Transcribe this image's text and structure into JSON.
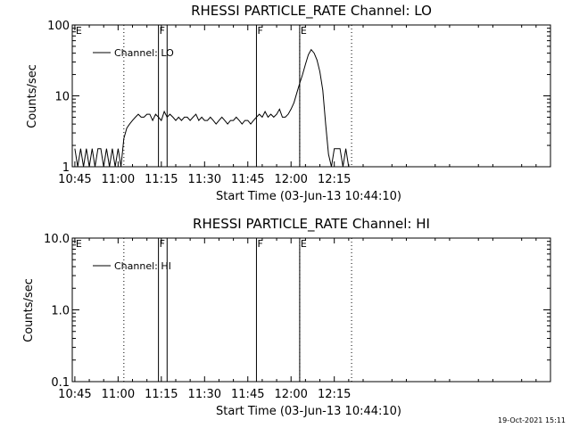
{
  "chart_data": [
    {
      "type": "line",
      "title": "RHESSI PARTICLE_RATE Channel: LO",
      "xlabel": "Start Time (03-Jun-13 10:44:10)",
      "ylabel": "Counts/sec",
      "y_scale": "log",
      "ylim": [
        1,
        100
      ],
      "xlim_minutes": [
        44.1,
        210
      ],
      "x_tick_labels": [
        "10:45",
        "11:00",
        "11:15",
        "11:30",
        "11:45",
        "12:00",
        "12:15"
      ],
      "y_tick_labels": [
        "1",
        "10",
        "100"
      ],
      "legend": "Channel: LO",
      "legend_position": "top-left",
      "flags": [
        {
          "label": "E",
          "time": "10:45",
          "style": "none"
        },
        {
          "label": "",
          "time": "11:02",
          "style": "dotted"
        },
        {
          "label": "F",
          "time": "11:14",
          "style": "solid"
        },
        {
          "label": "",
          "time": "11:17",
          "style": "solid"
        },
        {
          "label": "F",
          "time": "11:48",
          "style": "solid"
        },
        {
          "label": "E",
          "time": "12:03",
          "style": "solid"
        },
        {
          "label": "",
          "time": "12:03",
          "style": "dotted"
        },
        {
          "label": "",
          "time": "12:21",
          "style": "dotted"
        }
      ],
      "series": [
        {
          "name": "Channel: LO",
          "x": [
            "10:45",
            "10:46",
            "10:47",
            "10:48",
            "10:49",
            "10:50",
            "10:51",
            "10:52",
            "10:53",
            "10:54",
            "10:55",
            "10:56",
            "10:57",
            "10:58",
            "10:59",
            "11:00",
            "11:01",
            "11:02",
            "11:03",
            "11:04",
            "11:05",
            "11:06",
            "11:07",
            "11:08",
            "11:09",
            "11:10",
            "11:11",
            "11:12",
            "11:13",
            "11:14",
            "11:15",
            "11:16",
            "11:17",
            "11:18",
            "11:19",
            "11:20",
            "11:21",
            "11:22",
            "11:23",
            "11:24",
            "11:25",
            "11:26",
            "11:27",
            "11:28",
            "11:29",
            "11:30",
            "11:31",
            "11:32",
            "11:33",
            "11:34",
            "11:35",
            "11:36",
            "11:37",
            "11:38",
            "11:39",
            "11:40",
            "11:41",
            "11:42",
            "11:43",
            "11:44",
            "11:45",
            "11:46",
            "11:47",
            "11:48",
            "11:49",
            "11:50",
            "11:51",
            "11:52",
            "11:53",
            "11:54",
            "11:55",
            "11:56",
            "11:57",
            "11:58",
            "11:59",
            "12:00",
            "12:01",
            "12:02",
            "12:03",
            "12:04",
            "12:05",
            "12:06",
            "12:07",
            "12:08",
            "12:09",
            "12:10",
            "12:11",
            "12:12",
            "12:13",
            "12:14",
            "12:15",
            "12:16",
            "12:17",
            "12:18",
            "12:19",
            "12:20"
          ],
          "y": [
            1.8,
            1.0,
            1.8,
            1.0,
            1.8,
            1.0,
            1.8,
            1.0,
            1.8,
            1.8,
            1.0,
            1.8,
            1.0,
            1.8,
            1.0,
            1.8,
            1.0,
            2.5,
            3.5,
            4.0,
            4.5,
            5.0,
            5.5,
            5.0,
            5.0,
            5.5,
            5.5,
            4.5,
            5.5,
            5.0,
            4.5,
            6.0,
            5.0,
            5.5,
            5.0,
            4.5,
            5.0,
            4.5,
            5.0,
            5.0,
            4.5,
            5.0,
            5.5,
            4.5,
            5.0,
            4.5,
            4.5,
            5.0,
            4.5,
            4.0,
            4.5,
            5.0,
            4.5,
            4.0,
            4.5,
            4.5,
            5.0,
            4.5,
            4.0,
            4.5,
            4.5,
            4.0,
            4.5,
            5.0,
            5.5,
            5.0,
            6.0,
            5.0,
            5.5,
            5.0,
            5.5,
            6.5,
            5.0,
            5.0,
            5.5,
            6.5,
            8.0,
            11.0,
            15.0,
            20.0,
            28.0,
            38.0,
            45.0,
            40.0,
            32.0,
            22.0,
            12.0,
            4.0,
            1.5,
            1.0,
            1.8,
            1.8,
            1.8,
            1.0,
            1.8,
            1.0
          ]
        }
      ]
    },
    {
      "type": "line",
      "title": "RHESSI PARTICLE_RATE Channel: HI",
      "xlabel": "Start Time (03-Jun-13 10:44:10)",
      "ylabel": "Counts/sec",
      "y_scale": "log",
      "ylim": [
        0.1,
        10
      ],
      "xlim_minutes": [
        44.1,
        210
      ],
      "x_tick_labels": [
        "10:45",
        "11:00",
        "11:15",
        "11:30",
        "11:45",
        "12:00",
        "12:15"
      ],
      "y_tick_labels": [
        "0.1",
        "1.0",
        "10.0"
      ],
      "legend": "Channel: HI",
      "legend_position": "top-left",
      "flags": [
        {
          "label": "E",
          "time": "10:45",
          "style": "none"
        },
        {
          "label": "",
          "time": "11:02",
          "style": "dotted"
        },
        {
          "label": "F",
          "time": "11:14",
          "style": "solid"
        },
        {
          "label": "",
          "time": "11:17",
          "style": "solid"
        },
        {
          "label": "F",
          "time": "11:48",
          "style": "solid"
        },
        {
          "label": "E",
          "time": "12:03",
          "style": "solid"
        },
        {
          "label": "",
          "time": "12:03",
          "style": "dotted"
        },
        {
          "label": "",
          "time": "12:21",
          "style": "dotted"
        }
      ],
      "series": [
        {
          "name": "Channel: HI",
          "x": [],
          "y": []
        }
      ]
    }
  ],
  "footer": {
    "timestamp": "19-Oct-2021 15:11"
  }
}
